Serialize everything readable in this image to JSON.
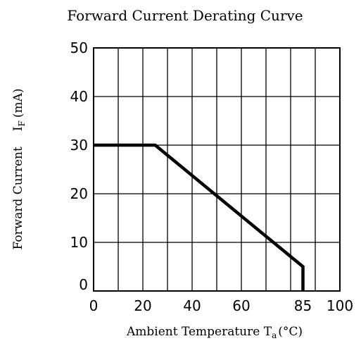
{
  "chart_data": {
    "type": "line",
    "title": "Forward Current Derating Curve",
    "xlabel": "Ambient Temperature",
    "xlabel_symbol": "T",
    "xlabel_subscript": "a",
    "xlabel_unit": "(°C)",
    "ylabel": "Forward Current",
    "ylabel_symbol": "I",
    "ylabel_subscript": "F",
    "ylabel_unit": "(mA)",
    "xlim": [
      0,
      100
    ],
    "ylim": [
      0,
      50
    ],
    "x_tick_labels": [
      {
        "value": 0,
        "label": "0"
      },
      {
        "value": 20,
        "label": "20"
      },
      {
        "value": 40,
        "label": "40"
      },
      {
        "value": 60,
        "label": "60"
      },
      {
        "value": 85,
        "label": "85"
      },
      {
        "value": 100,
        "label": "100"
      }
    ],
    "y_tick_labels": [
      {
        "value": 0,
        "label": "0"
      },
      {
        "value": 10,
        "label": "10"
      },
      {
        "value": 20,
        "label": "20"
      },
      {
        "value": 30,
        "label": "30"
      },
      {
        "value": 40,
        "label": "40"
      },
      {
        "value": 50,
        "label": "50"
      }
    ],
    "x_grid_values": [
      0,
      10,
      20,
      30,
      40,
      50,
      60,
      70,
      80,
      90,
      100
    ],
    "y_grid_values": [
      0,
      10,
      20,
      30,
      40,
      50
    ],
    "grid": true,
    "series": [
      {
        "points": [
          {
            "x": 0,
            "y": 30
          },
          {
            "x": 25,
            "y": 30
          },
          {
            "x": 85,
            "y": 5
          },
          {
            "x": 85,
            "y": 0
          }
        ],
        "color": "#000000"
      }
    ]
  }
}
